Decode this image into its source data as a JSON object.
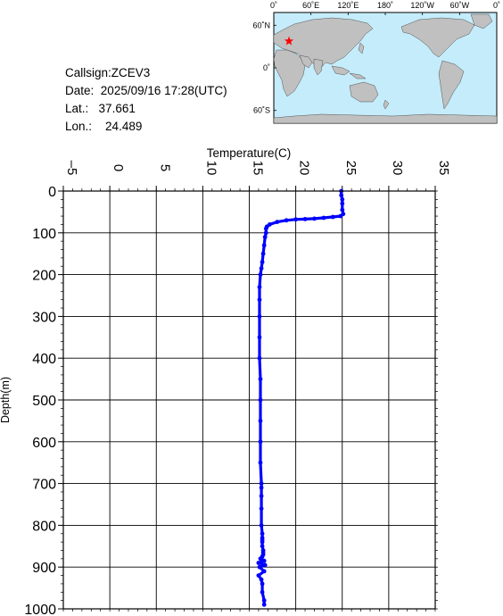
{
  "info": {
    "callsign_label": "Callsign:",
    "callsign": "ZCEV3",
    "date_label": "Date:",
    "date": "2025/09/16 17:28(UTC)",
    "lat_label": "Lat.:",
    "lat": "37.661",
    "lon_label": "Lon.:",
    "lon": "24.489"
  },
  "map": {
    "lon_labels": [
      "0˚",
      "60˚E",
      "120˚E",
      "180˚",
      "120˚W",
      "60˚W",
      "0˚"
    ],
    "lat_labels": [
      "60˚N",
      "0˚",
      "60˚S"
    ],
    "ocean_color": "#c5ecfa",
    "land_color": "#c0c0c0",
    "marker": {
      "lat": 37.661,
      "lon": 24.489,
      "symbol": "star",
      "color": "#ff0000"
    }
  },
  "chart_data": {
    "type": "line",
    "title": "",
    "xlabel": "Temperature(C)",
    "ylabel": "Depth(m)",
    "xlim": [
      -5,
      35
    ],
    "ylim": [
      1000,
      0
    ],
    "x_ticks": [
      "-5",
      "0",
      "5",
      "10",
      "15",
      "20",
      "25",
      "30",
      "35"
    ],
    "y_ticks": [
      "0",
      "100",
      "200",
      "300",
      "400",
      "500",
      "600",
      "700",
      "800",
      "900",
      "1000"
    ],
    "grid": true,
    "series_color": "#0000ff",
    "series": [
      {
        "x": [
          24.9,
          24.9,
          25.0,
          25.0,
          25.0,
          25.1,
          24.8,
          24.0,
          23.0,
          22.0,
          21.0,
          20.0,
          19.0,
          18.0,
          17.2,
          16.9,
          16.8,
          16.8,
          16.7,
          16.6,
          16.5,
          16.4,
          16.3,
          16.2,
          16.1,
          16.1,
          16.1,
          16.1,
          16.1,
          16.2,
          16.2,
          16.2,
          16.2,
          16.2,
          16.3,
          16.3,
          16.3,
          16.3,
          16.3,
          16.4,
          16.4,
          16.4,
          16.4,
          16.4,
          16.5,
          16.5,
          16.5,
          16.4,
          16.2,
          16.6,
          16.0,
          16.7,
          16.1,
          16.6,
          16.0,
          16.3,
          16.4,
          16.4,
          16.6,
          16.6
        ],
        "y": [
          0,
          10,
          20,
          30,
          45,
          55,
          60,
          62,
          64,
          66,
          67,
          68,
          70,
          74,
          80,
          85,
          90,
          100,
          110,
          130,
          150,
          170,
          185,
          200,
          230,
          260,
          300,
          350,
          400,
          450,
          500,
          550,
          600,
          650,
          700,
          710,
          730,
          760,
          800,
          820,
          830,
          835,
          840,
          850,
          860,
          865,
          870,
          875,
          880,
          885,
          890,
          895,
          900,
          910,
          920,
          930,
          940,
          960,
          980,
          990
        ]
      }
    ]
  }
}
